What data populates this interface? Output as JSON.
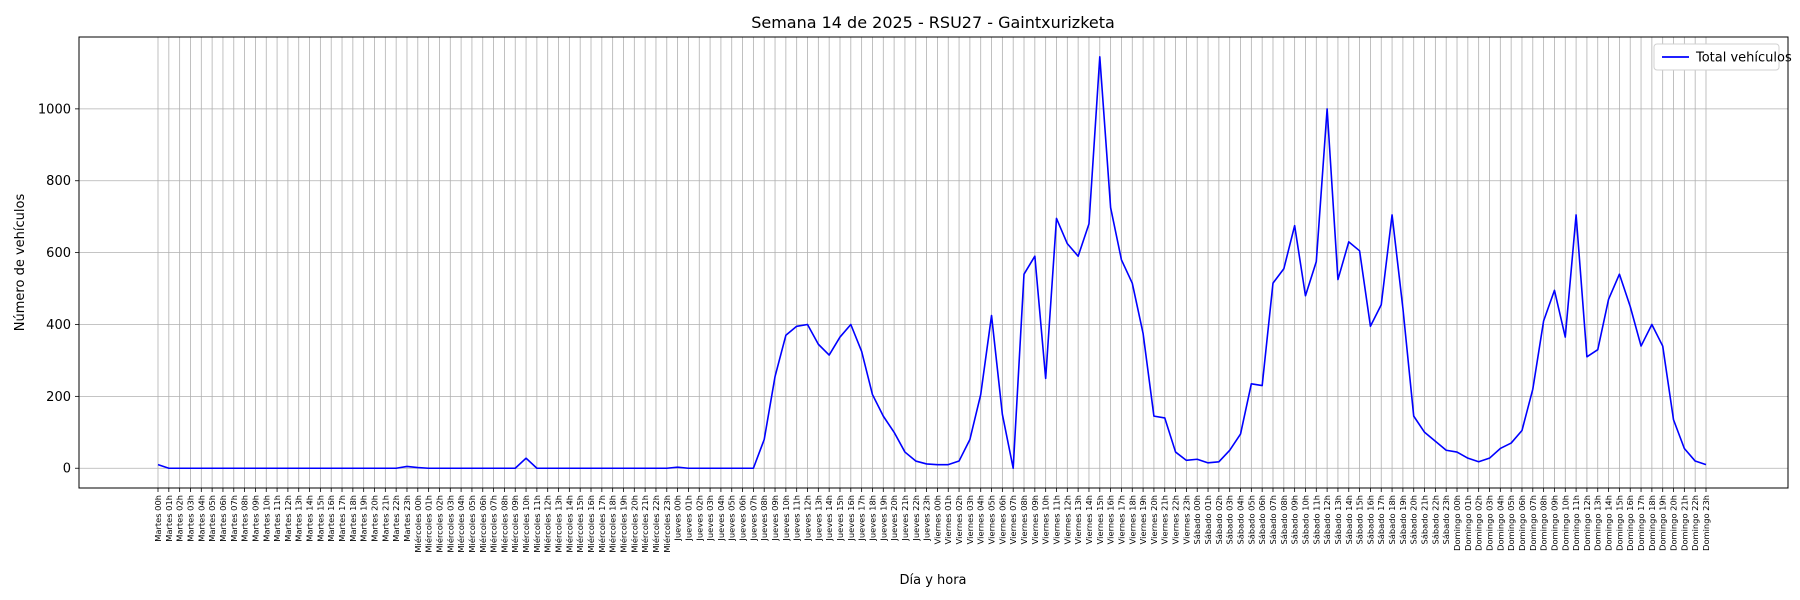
{
  "chart_data": {
    "type": "line",
    "title": "Semana 14 de 2025 - RSU27 - Gaintxurizketa",
    "xlabel": "Día y hora",
    "ylabel": "Número de vehículos",
    "ylim": [
      -55,
      1200
    ],
    "yticks": [
      0,
      200,
      400,
      600,
      800,
      1000
    ],
    "grid": true,
    "legend_position": "top-right",
    "categories": [
      "Martes 00h",
      "Martes 01h",
      "Martes 02h",
      "Martes 03h",
      "Martes 04h",
      "Martes 05h",
      "Martes 06h",
      "Martes 07h",
      "Martes 08h",
      "Martes 09h",
      "Martes 10h",
      "Martes 11h",
      "Martes 12h",
      "Martes 13h",
      "Martes 14h",
      "Martes 15h",
      "Martes 16h",
      "Martes 17h",
      "Martes 18h",
      "Martes 19h",
      "Martes 20h",
      "Martes 21h",
      "Martes 22h",
      "Martes 23h",
      "Miércoles 00h",
      "Miércoles 01h",
      "Miércoles 02h",
      "Miércoles 03h",
      "Miércoles 04h",
      "Miércoles 05h",
      "Miércoles 06h",
      "Miércoles 07h",
      "Miércoles 08h",
      "Miércoles 09h",
      "Miércoles 10h",
      "Miércoles 11h",
      "Miércoles 12h",
      "Miércoles 13h",
      "Miércoles 14h",
      "Miércoles 15h",
      "Miércoles 16h",
      "Miércoles 17h",
      "Miércoles 18h",
      "Miércoles 19h",
      "Miércoles 20h",
      "Miércoles 21h",
      "Miércoles 22h",
      "Miércoles 23h",
      "Jueves 00h",
      "Jueves 01h",
      "Jueves 02h",
      "Jueves 03h",
      "Jueves 04h",
      "Jueves 05h",
      "Jueves 06h",
      "Jueves 07h",
      "Jueves 08h",
      "Jueves 09h",
      "Jueves 10h",
      "Jueves 11h",
      "Jueves 12h",
      "Jueves 13h",
      "Jueves 14h",
      "Jueves 15h",
      "Jueves 16h",
      "Jueves 17h",
      "Jueves 18h",
      "Jueves 19h",
      "Jueves 20h",
      "Jueves 21h",
      "Jueves 22h",
      "Jueves 23h",
      "Viernes 00h",
      "Viernes 01h",
      "Viernes 02h",
      "Viernes 03h",
      "Viernes 04h",
      "Viernes 05h",
      "Viernes 06h",
      "Viernes 07h",
      "Viernes 08h",
      "Viernes 09h",
      "Viernes 10h",
      "Viernes 11h",
      "Viernes 12h",
      "Viernes 13h",
      "Viernes 14h",
      "Viernes 15h",
      "Viernes 16h",
      "Viernes 17h",
      "Viernes 18h",
      "Viernes 19h",
      "Viernes 20h",
      "Viernes 21h",
      "Viernes 22h",
      "Viernes 23h",
      "Sábado 00h",
      "Sábado 01h",
      "Sábado 02h",
      "Sábado 03h",
      "Sábado 04h",
      "Sábado 05h",
      "Sábado 06h",
      "Sábado 07h",
      "Sábado 08h",
      "Sábado 09h",
      "Sábado 10h",
      "Sábado 11h",
      "Sábado 12h",
      "Sábado 13h",
      "Sábado 14h",
      "Sábado 15h",
      "Sábado 16h",
      "Sábado 17h",
      "Sábado 18h",
      "Sábado 19h",
      "Sábado 20h",
      "Sábado 21h",
      "Sábado 22h",
      "Sábado 23h",
      "Domingo 00h",
      "Domingo 01h",
      "Domingo 02h",
      "Domingo 03h",
      "Domingo 04h",
      "Domingo 05h",
      "Domingo 06h",
      "Domingo 07h",
      "Domingo 08h",
      "Domingo 09h",
      "Domingo 10h",
      "Domingo 11h",
      "Domingo 12h",
      "Domingo 13h",
      "Domingo 14h",
      "Domingo 15h",
      "Domingo 16h",
      "Domingo 17h",
      "Domingo 18h",
      "Domingo 19h",
      "Domingo 20h",
      "Domingo 21h",
      "Domingo 22h",
      "Domingo 23h"
    ],
    "series": [
      {
        "name": "Total vehículos",
        "color": "#0000ff",
        "values": [
          10,
          0,
          0,
          0,
          0,
          0,
          0,
          0,
          0,
          0,
          0,
          0,
          0,
          0,
          0,
          0,
          0,
          0,
          0,
          0,
          0,
          0,
          0,
          5,
          2,
          0,
          0,
          0,
          0,
          0,
          0,
          0,
          0,
          0,
          28,
          0,
          0,
          0,
          0,
          0,
          0,
          0,
          0,
          0,
          0,
          0,
          0,
          0,
          3,
          0,
          0,
          0,
          0,
          0,
          0,
          0,
          80,
          255,
          370,
          395,
          400,
          345,
          315,
          365,
          400,
          325,
          205,
          145,
          100,
          45,
          20,
          12,
          10,
          10,
          20,
          80,
          205,
          425,
          150,
          0,
          540,
          590,
          250,
          695,
          625,
          590,
          680,
          1145,
          725,
          580,
          515,
          375,
          145,
          140,
          45,
          22,
          25,
          15,
          18,
          50,
          95,
          235,
          230,
          515,
          555,
          675,
          480,
          575,
          1000,
          525,
          630,
          605,
          395,
          455,
          705,
          445,
          145,
          100,
          75,
          50,
          45,
          28,
          18,
          28,
          55,
          70,
          105,
          220,
          410,
          495,
          365,
          705,
          310,
          330,
          470,
          540,
          450,
          340,
          400,
          340,
          135,
          55,
          20,
          10
        ]
      }
    ]
  }
}
